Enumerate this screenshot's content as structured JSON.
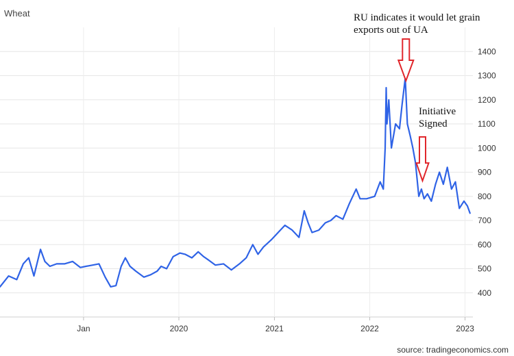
{
  "chart_data": {
    "type": "line",
    "title": "Wheat",
    "source": "source: tradingeconomics.com",
    "line_color": "#2f63e6",
    "arrow_color": "#e0262b",
    "grid": true,
    "ylim": [
      300,
      1500
    ],
    "y_ticks": [
      400,
      500,
      600,
      700,
      800,
      900,
      1000,
      1100,
      1200,
      1300,
      1400
    ],
    "x_ticks": [
      "Jan",
      "2020",
      "2021",
      "2022",
      "2023"
    ],
    "xlim": [
      "2018-02-15",
      "2023-01-31"
    ],
    "series": [
      {
        "x": [
          "2018-02-15",
          "2018-03-20",
          "2018-04-20",
          "2018-05-15",
          "2018-06-05",
          "2018-06-25",
          "2018-07-20",
          "2018-08-06",
          "2018-08-25",
          "2018-09-20",
          "2018-10-20",
          "2018-11-20",
          "2018-12-20",
          "2019-01-10",
          "2019-02-05",
          "2019-03-01",
          "2019-03-25",
          "2019-04-15",
          "2019-05-05",
          "2019-05-25",
          "2019-06-10",
          "2019-06-28",
          "2019-07-20",
          "2019-08-20",
          "2019-09-15",
          "2019-10-10",
          "2019-10-25",
          "2019-11-15",
          "2019-12-10",
          "2020-01-05",
          "2020-01-25",
          "2020-02-20",
          "2020-03-15",
          "2020-04-05",
          "2020-04-25",
          "2020-05-20",
          "2020-06-20",
          "2020-07-20",
          "2020-08-20",
          "2020-09-15",
          "2020-10-10",
          "2020-10-30",
          "2020-11-20",
          "2020-12-20",
          "2021-01-15",
          "2021-02-10",
          "2021-03-10",
          "2021-04-05",
          "2021-04-25",
          "2021-05-10",
          "2021-05-25",
          "2021-06-20",
          "2021-07-15",
          "2021-08-05",
          "2021-08-25",
          "2021-09-20",
          "2021-10-15",
          "2021-11-10",
          "2021-11-25",
          "2021-12-20",
          "2022-01-20",
          "2022-02-10",
          "2022-02-22",
          "2022-03-01",
          "2022-03-05",
          "2022-03-08",
          "2022-03-15",
          "2022-03-25",
          "2022-04-10",
          "2022-04-25",
          "2022-05-05",
          "2022-05-17",
          "2022-05-25",
          "2022-06-05",
          "2022-06-15",
          "2022-06-25",
          "2022-07-08",
          "2022-07-18",
          "2022-07-28",
          "2022-08-10",
          "2022-08-25",
          "2022-09-10",
          "2022-09-25",
          "2022-10-10",
          "2022-10-25",
          "2022-11-10",
          "2022-11-25",
          "2022-12-10",
          "2022-12-28",
          "2023-01-10",
          "2023-01-20"
        ],
        "y": [
          425,
          470,
          455,
          520,
          545,
          470,
          580,
          530,
          510,
          520,
          520,
          530,
          505,
          510,
          515,
          520,
          465,
          425,
          430,
          510,
          545,
          510,
          490,
          465,
          475,
          490,
          510,
          500,
          550,
          565,
          560,
          545,
          570,
          550,
          535,
          515,
          520,
          495,
          520,
          545,
          600,
          560,
          590,
          620,
          650,
          680,
          660,
          630,
          740,
          690,
          650,
          660,
          690,
          700,
          720,
          705,
          770,
          830,
          790,
          790,
          800,
          860,
          830,
          1000,
          1250,
          1100,
          1200,
          1000,
          1100,
          1080,
          1180,
          1290,
          1100,
          1050,
          1000,
          940,
          800,
          830,
          790,
          810,
          780,
          850,
          900,
          850,
          920,
          830,
          860,
          750,
          780,
          760,
          730
        ]
      }
    ],
    "annotations": [
      {
        "lines": [
          "RU indicates it would let grain",
          "exports out of UA"
        ],
        "date": "2022-05-17",
        "value": 1290
      },
      {
        "lines": [
          "Initiative",
          "Signed"
        ],
        "date": "2022-07-22",
        "value": 870
      }
    ]
  }
}
